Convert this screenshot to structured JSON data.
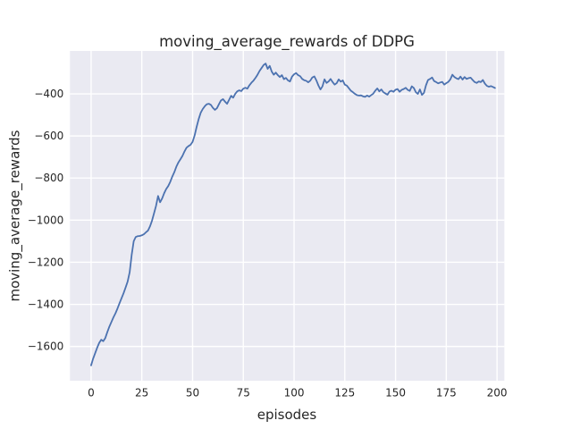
{
  "figure": {
    "background_color": "#FFFFFF"
  },
  "chart_data": {
    "type": "line",
    "title": "moving_average_rewards of DDPG",
    "xlabel": "episodes",
    "ylabel": "moving_average_rewards",
    "style": "seaborn-darkgrid",
    "grid": true,
    "legend": "none",
    "colors": {
      "line": "#4C72B0",
      "plot_background": "#EAEAF2",
      "grid_line": "#FFFFFF",
      "text": "#262626"
    },
    "x_ticks": [
      0,
      25,
      50,
      75,
      100,
      125,
      150,
      175,
      200
    ],
    "x_tick_labels": [
      "0",
      "25",
      "50",
      "75",
      "100",
      "125",
      "150",
      "175",
      "200"
    ],
    "y_ticks": [
      -400,
      -600,
      -800,
      -1000,
      -1200,
      -1400,
      -1600
    ],
    "y_tick_labels": [
      "−400",
      "−600",
      "−800",
      "−1000",
      "−1200",
      "−1400",
      "−1600"
    ],
    "xlim": [
      -10.4,
      203.6
    ],
    "ylim": [
      -1763,
      -196
    ],
    "series": [
      {
        "name": "DDPG moving average rewards",
        "x_start": 0,
        "x_step": 1,
        "values": [
          -1690,
          -1658,
          -1632,
          -1606,
          -1583,
          -1568,
          -1575,
          -1560,
          -1532,
          -1506,
          -1484,
          -1462,
          -1443,
          -1420,
          -1395,
          -1371,
          -1347,
          -1320,
          -1292,
          -1248,
          -1165,
          -1100,
          -1080,
          -1076,
          -1075,
          -1072,
          -1067,
          -1058,
          -1050,
          -1030,
          -1003,
          -968,
          -932,
          -885,
          -915,
          -897,
          -872,
          -852,
          -838,
          -818,
          -793,
          -772,
          -746,
          -726,
          -711,
          -695,
          -674,
          -656,
          -648,
          -642,
          -628,
          -598,
          -557,
          -520,
          -490,
          -472,
          -459,
          -449,
          -447,
          -452,
          -466,
          -476,
          -468,
          -449,
          -431,
          -425,
          -437,
          -447,
          -428,
          -409,
          -418,
          -400,
          -388,
          -383,
          -387,
          -375,
          -371,
          -375,
          -359,
          -347,
          -337,
          -324,
          -309,
          -291,
          -277,
          -263,
          -256,
          -281,
          -267,
          -294,
          -309,
          -299,
          -311,
          -320,
          -311,
          -330,
          -324,
          -336,
          -341,
          -318,
          -307,
          -301,
          -311,
          -316,
          -329,
          -335,
          -338,
          -345,
          -337,
          -322,
          -317,
          -336,
          -360,
          -379,
          -364,
          -331,
          -348,
          -341,
          -329,
          -344,
          -356,
          -349,
          -331,
          -342,
          -336,
          -356,
          -361,
          -373,
          -385,
          -392,
          -400,
          -406,
          -408,
          -407,
          -412,
          -414,
          -408,
          -413,
          -406,
          -399,
          -385,
          -374,
          -388,
          -379,
          -392,
          -398,
          -404,
          -389,
          -385,
          -390,
          -380,
          -377,
          -390,
          -381,
          -377,
          -371,
          -381,
          -386,
          -364,
          -372,
          -392,
          -400,
          -379,
          -405,
          -395,
          -359,
          -334,
          -329,
          -322,
          -339,
          -344,
          -350,
          -346,
          -343,
          -356,
          -349,
          -343,
          -331,
          -309,
          -320,
          -326,
          -330,
          -318,
          -332,
          -320,
          -329,
          -325,
          -323,
          -334,
          -344,
          -348,
          -341,
          -344,
          -334,
          -351,
          -362,
          -366,
          -363,
          -367,
          -372
        ]
      }
    ]
  }
}
